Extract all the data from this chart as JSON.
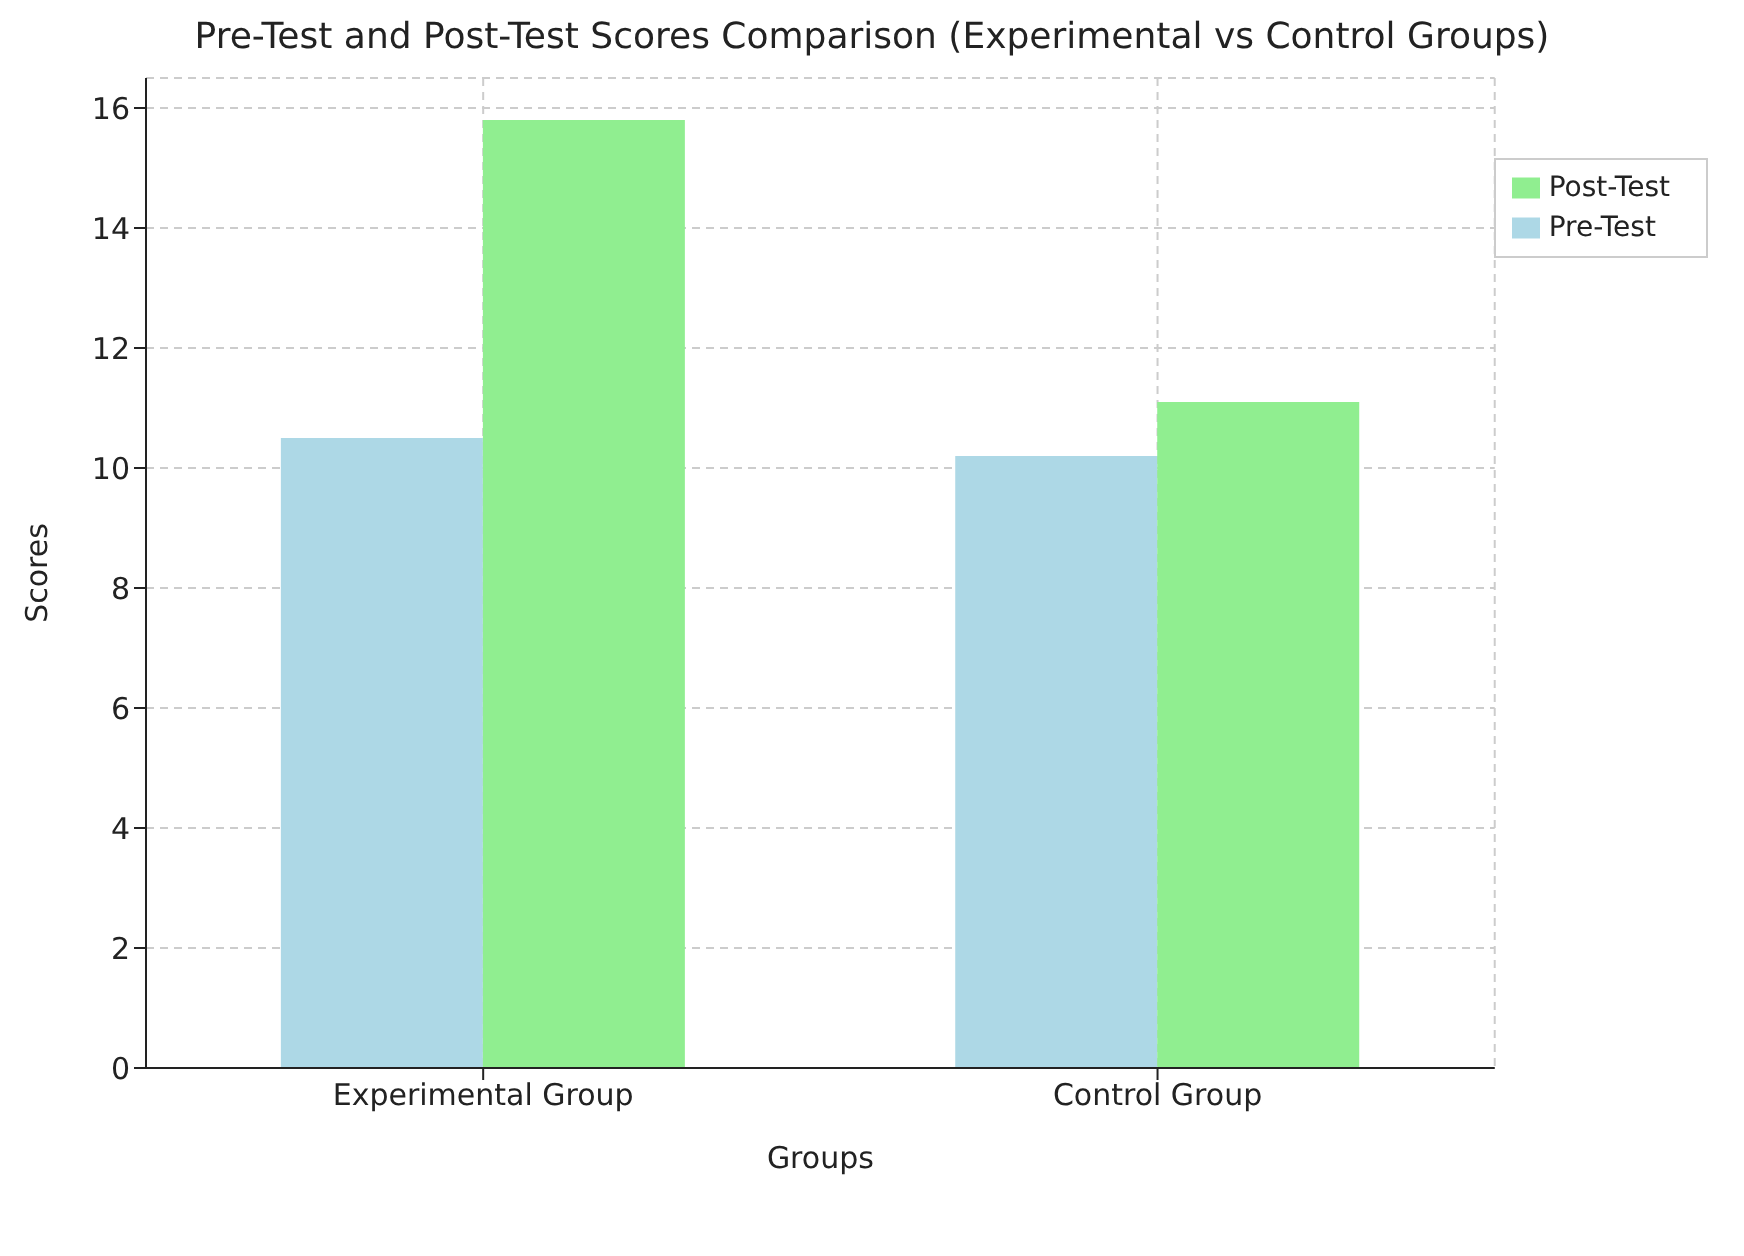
{
  "chart_data": {
    "type": "bar",
    "title": "Pre-Test and Post-Test Scores Comparison (Experimental vs Control Groups)",
    "xlabel": "Groups",
    "ylabel": "Scores",
    "categories": [
      "Experimental Group",
      "Control Group"
    ],
    "series": [
      {
        "name": "Pre-Test",
        "color": "#add8e6",
        "values": [
          10.5,
          10.2
        ]
      },
      {
        "name": "Post-Test",
        "color": "#90ee90",
        "values": [
          15.8,
          11.1
        ]
      }
    ],
    "ylim": [
      0,
      16.5
    ],
    "yticks": [
      0,
      2,
      4,
      6,
      8,
      10,
      12,
      14,
      16
    ],
    "grid": true,
    "legend": "top right"
  }
}
